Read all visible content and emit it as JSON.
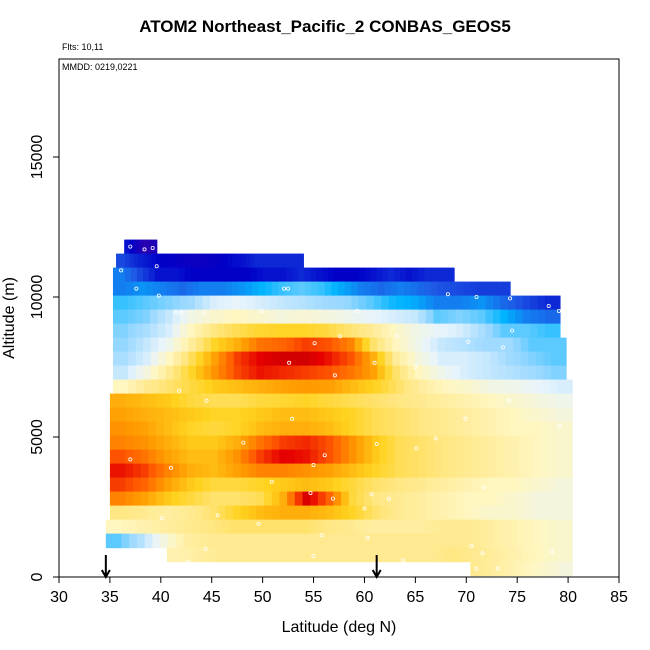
{
  "header": {
    "title": "ATOM2 Northeast_Pacific_2 CONBAS_GEOS5",
    "flights_label": "Flts: 10,11",
    "dates_label": "MMDD: 0219,0221"
  },
  "chart_data": {
    "type": "heatmap",
    "title": "ATOM2 Northeast_Pacific_2 CONBAS_GEOS5",
    "xlabel": "Latitude (deg N)",
    "ylabel": "Altitude (m)",
    "xlim": [
      30,
      85
    ],
    "ylim": [
      0,
      18500
    ],
    "x_ticks": [
      30,
      35,
      40,
      45,
      50,
      55,
      60,
      65,
      70,
      75,
      80,
      85
    ],
    "y_ticks": [
      0,
      5000,
      10000,
      15000
    ],
    "grid": false,
    "colormap": [
      "#2a00b0",
      "#0000c8",
      "#1e5ae6",
      "#00b4ff",
      "#9ad8ff",
      "#e8f4fc",
      "#fff6c0",
      "#ffe680",
      "#ffd21e",
      "#ff9a00",
      "#ff5a00",
      "#e60000",
      "#b40000"
    ],
    "arrows_at_latitude": [
      34.6,
      61.2
    ],
    "layers": [
      {
        "alt": 11800,
        "lat_start": 36.4,
        "lat_end": 39.6,
        "values": [
          0.1,
          0.05,
          0.0,
          0.02
        ]
      },
      {
        "alt": 11300,
        "lat_start": 35.6,
        "lat_end": 54.0,
        "values": [
          0.15,
          0.12,
          0.1,
          0.08,
          0.07,
          0.06,
          0.06,
          0.07,
          0.09,
          0.1,
          0.12,
          0.12,
          0.12,
          0.12
        ]
      },
      {
        "alt": 10800,
        "lat_start": 35.3,
        "lat_end": 68.8,
        "values": [
          0.2,
          0.15,
          0.1,
          0.1,
          0.08,
          0.08,
          0.08,
          0.08,
          0.1,
          0.1,
          0.12,
          0.1,
          0.08,
          0.08,
          0.1,
          0.12,
          0.1,
          0.12,
          0.12
        ]
      },
      {
        "alt": 10300,
        "lat_start": 35.3,
        "lat_end": 74.3,
        "values": [
          0.2,
          0.22,
          0.2,
          0.18,
          0.2,
          0.2,
          0.22,
          0.25,
          0.28,
          0.3,
          0.28,
          0.24,
          0.2,
          0.18,
          0.2,
          0.18,
          0.16,
          0.15,
          0.14,
          0.14
        ]
      },
      {
        "alt": 9800,
        "lat_start": 35.3,
        "lat_end": 79.2,
        "values": [
          0.28,
          0.3,
          0.32,
          0.34,
          0.4,
          0.42,
          0.4,
          0.38,
          0.36,
          0.34,
          0.33,
          0.3,
          0.26,
          0.24,
          0.2,
          0.2,
          0.22,
          0.18,
          0.15,
          0.12
        ]
      },
      {
        "alt": 9300,
        "lat_start": 35.3,
        "lat_end": 79.2,
        "values": [
          0.3,
          0.32,
          0.38,
          0.45,
          0.48,
          0.5,
          0.48,
          0.46,
          0.47,
          0.46,
          0.44,
          0.42,
          0.4,
          0.38,
          0.3,
          0.32,
          0.3,
          0.25,
          0.2,
          0.18
        ]
      },
      {
        "alt": 8800,
        "lat_start": 35.3,
        "lat_end": 79.2,
        "values": [
          0.32,
          0.35,
          0.4,
          0.5,
          0.58,
          0.62,
          0.65,
          0.66,
          0.66,
          0.64,
          0.6,
          0.56,
          0.5,
          0.45,
          0.42,
          0.4,
          0.35,
          0.3,
          0.3,
          0.28
        ]
      },
      {
        "alt": 8300,
        "lat_start": 35.3,
        "lat_end": 79.8,
        "values": [
          0.33,
          0.38,
          0.44,
          0.55,
          0.66,
          0.72,
          0.8,
          0.82,
          0.86,
          0.84,
          0.78,
          0.6,
          0.5,
          0.44,
          0.38,
          0.36,
          0.34,
          0.34,
          0.3,
          0.3
        ]
      },
      {
        "alt": 7800,
        "lat_start": 35.3,
        "lat_end": 79.8,
        "values": [
          0.35,
          0.4,
          0.5,
          0.62,
          0.74,
          0.86,
          0.92,
          0.95,
          0.95,
          0.9,
          0.84,
          0.72,
          0.55,
          0.46,
          0.4,
          0.4,
          0.38,
          0.34,
          0.32,
          0.3
        ]
      },
      {
        "alt": 7300,
        "lat_start": 35.3,
        "lat_end": 79.8,
        "values": [
          0.38,
          0.46,
          0.56,
          0.66,
          0.76,
          0.85,
          0.9,
          0.88,
          0.86,
          0.84,
          0.8,
          0.74,
          0.6,
          0.5,
          0.44,
          0.4,
          0.38,
          0.36,
          0.34,
          0.32
        ]
      },
      {
        "alt": 6800,
        "lat_start": 35.3,
        "lat_end": 80.4,
        "values": [
          0.5,
          0.56,
          0.6,
          0.64,
          0.68,
          0.7,
          0.72,
          0.74,
          0.75,
          0.74,
          0.7,
          0.66,
          0.6,
          0.54,
          0.5,
          0.48,
          0.45,
          0.44,
          0.42,
          0.4
        ]
      },
      {
        "alt": 6300,
        "lat_start": 35.0,
        "lat_end": 80.4,
        "values": [
          0.72,
          0.7,
          0.68,
          0.64,
          0.62,
          0.62,
          0.64,
          0.65,
          0.66,
          0.64,
          0.62,
          0.6,
          0.58,
          0.56,
          0.54,
          0.52,
          0.5,
          0.48,
          0.46,
          0.44
        ]
      },
      {
        "alt": 5800,
        "lat_start": 35.0,
        "lat_end": 80.4,
        "values": [
          0.74,
          0.72,
          0.7,
          0.68,
          0.66,
          0.66,
          0.68,
          0.7,
          0.7,
          0.68,
          0.66,
          0.62,
          0.6,
          0.58,
          0.56,
          0.54,
          0.52,
          0.5,
          0.48,
          0.46
        ]
      },
      {
        "alt": 5300,
        "lat_start": 35.0,
        "lat_end": 80.4,
        "values": [
          0.76,
          0.74,
          0.7,
          0.66,
          0.64,
          0.66,
          0.7,
          0.72,
          0.72,
          0.7,
          0.66,
          0.62,
          0.6,
          0.58,
          0.56,
          0.54,
          0.52,
          0.5,
          0.5,
          0.48
        ]
      },
      {
        "alt": 4800,
        "lat_start": 35.0,
        "lat_end": 80.4,
        "values": [
          0.78,
          0.76,
          0.72,
          0.68,
          0.68,
          0.72,
          0.8,
          0.86,
          0.88,
          0.84,
          0.76,
          0.68,
          0.62,
          0.6,
          0.58,
          0.56,
          0.54,
          0.52,
          0.5,
          0.48
        ]
      },
      {
        "alt": 4300,
        "lat_start": 35.0,
        "lat_end": 80.4,
        "values": [
          0.84,
          0.8,
          0.74,
          0.7,
          0.7,
          0.76,
          0.86,
          0.92,
          0.9,
          0.84,
          0.76,
          0.68,
          0.62,
          0.6,
          0.58,
          0.56,
          0.54,
          0.52,
          0.5,
          0.48
        ]
      },
      {
        "alt": 3800,
        "lat_start": 35.0,
        "lat_end": 80.4,
        "values": [
          0.9,
          0.86,
          0.78,
          0.72,
          0.7,
          0.74,
          0.78,
          0.78,
          0.76,
          0.74,
          0.7,
          0.66,
          0.62,
          0.6,
          0.58,
          0.56,
          0.54,
          0.52,
          0.5,
          0.48
        ]
      },
      {
        "alt": 3300,
        "lat_start": 35.0,
        "lat_end": 80.4,
        "values": [
          0.86,
          0.82,
          0.74,
          0.68,
          0.64,
          0.64,
          0.66,
          0.68,
          0.7,
          0.68,
          0.64,
          0.6,
          0.58,
          0.56,
          0.54,
          0.52,
          0.5,
          0.5,
          0.48,
          0.46
        ]
      },
      {
        "alt": 2800,
        "lat_start": 35.0,
        "lat_end": 80.4,
        "values": [
          0.78,
          0.74,
          0.68,
          0.64,
          0.6,
          0.6,
          0.62,
          0.72,
          0.94,
          0.82,
          0.64,
          0.58,
          0.56,
          0.54,
          0.52,
          0.5,
          0.5,
          0.48,
          0.46,
          0.46
        ]
      },
      {
        "alt": 2300,
        "lat_start": 35.0,
        "lat_end": 80.4,
        "values": [
          0.58,
          0.56,
          0.54,
          0.56,
          0.6,
          0.66,
          0.7,
          0.72,
          0.72,
          0.7,
          0.66,
          0.6,
          0.56,
          0.54,
          0.52,
          0.5,
          0.48,
          0.48,
          0.46,
          0.46
        ]
      },
      {
        "alt": 1800,
        "lat_start": 34.6,
        "lat_end": 80.4,
        "values": [
          0.5,
          0.52,
          0.54,
          0.56,
          0.58,
          0.6,
          0.6,
          0.6,
          0.6,
          0.58,
          0.56,
          0.54,
          0.54,
          0.54,
          0.56,
          0.56,
          0.54,
          0.52,
          0.5,
          0.48
        ]
      },
      {
        "alt": 1300,
        "lat_start": 34.6,
        "lat_end": 80.4,
        "values": [
          0.3,
          0.36,
          0.46,
          0.54,
          0.56,
          0.56,
          0.56,
          0.56,
          0.56,
          0.56,
          0.56,
          0.56,
          0.56,
          0.56,
          0.56,
          0.56,
          0.54,
          0.52,
          0.5,
          0.48
        ]
      },
      {
        "alt": 800,
        "lat_start": 40.6,
        "lat_end": 80.4,
        "values": [
          0.52,
          0.54,
          0.56,
          0.56,
          0.56,
          0.56,
          0.56,
          0.56,
          0.56,
          0.56,
          0.56,
          0.56,
          0.56,
          0.58,
          0.56,
          0.54,
          0.52,
          0.5,
          0.48
        ]
      },
      {
        "alt": 300,
        "lat_start": 70.4,
        "lat_end": 80.4,
        "values": [
          0.56,
          0.54,
          0.52,
          0.5,
          0.48,
          0.46
        ]
      }
    ],
    "observation_points": [
      [
        37.0,
        11800
      ],
      [
        38.4,
        11700
      ],
      [
        39.2,
        11750
      ],
      [
        39.6,
        11100
      ],
      [
        36.1,
        10950
      ],
      [
        37.6,
        10300
      ],
      [
        39.8,
        10050
      ],
      [
        41.5,
        9450
      ],
      [
        42.0,
        9450
      ],
      [
        44.2,
        9420
      ],
      [
        49.9,
        9500
      ],
      [
        52.1,
        10300
      ],
      [
        52.5,
        10300
      ],
      [
        59.3,
        9500
      ],
      [
        68.2,
        10100
      ],
      [
        71.0,
        10000
      ],
      [
        74.3,
        9950
      ],
      [
        78.1,
        9680
      ],
      [
        79.1,
        9500
      ],
      [
        74.5,
        8800
      ],
      [
        63.2,
        8600
      ],
      [
        57.6,
        8600
      ],
      [
        55.1,
        8350
      ],
      [
        52.6,
        7650
      ],
      [
        57.1,
        7200
      ],
      [
        61.0,
        7650
      ],
      [
        65.0,
        7500
      ],
      [
        70.2,
        8400
      ],
      [
        73.6,
        8200
      ],
      [
        41.8,
        6650
      ],
      [
        44.5,
        6300
      ],
      [
        52.9,
        5650
      ],
      [
        67.0,
        4950
      ],
      [
        61.2,
        4750
      ],
      [
        65.1,
        4600
      ],
      [
        55.0,
        4000
      ],
      [
        56.1,
        4350
      ],
      [
        48.1,
        4800
      ],
      [
        37.0,
        4200
      ],
      [
        41.0,
        3900
      ],
      [
        50.9,
        3400
      ],
      [
        54.7,
        3000
      ],
      [
        56.9,
        2800
      ],
      [
        60.0,
        2450
      ],
      [
        60.7,
        2950
      ],
      [
        62.4,
        2800
      ],
      [
        71.7,
        3200
      ],
      [
        45.6,
        2200
      ],
      [
        55.8,
        1500
      ],
      [
        60.3,
        1400
      ],
      [
        70.5,
        1100
      ],
      [
        71.6,
        850
      ],
      [
        55.0,
        750
      ],
      [
        63.8,
        600
      ],
      [
        71.0,
        300
      ],
      [
        73.1,
        300
      ],
      [
        78.4,
        900
      ],
      [
        44.4,
        1000
      ],
      [
        42.7,
        550
      ],
      [
        57.8,
        250
      ],
      [
        49.6,
        1900
      ],
      [
        40.1,
        2100
      ],
      [
        69.9,
        5650
      ],
      [
        74.2,
        6300
      ],
      [
        79.1,
        5400
      ]
    ]
  }
}
